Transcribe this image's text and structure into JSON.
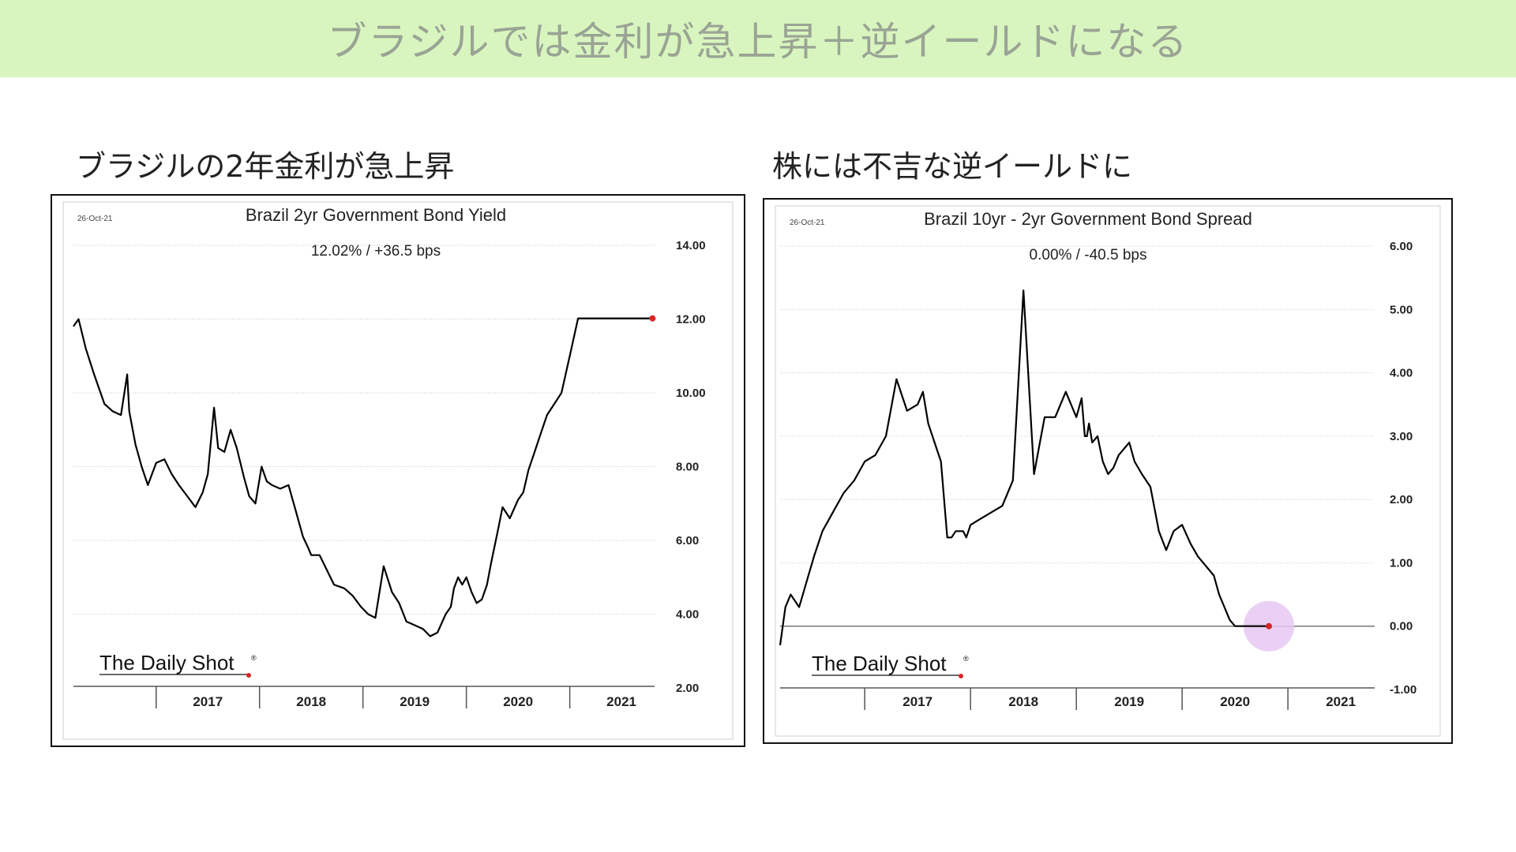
{
  "page": {
    "banner_title": "ブラジルでは金利が急上昇＋逆イールドになる",
    "left_subtitle": "ブラジルの2年金利が急上昇",
    "right_subtitle": "株には不吉な逆イールドに",
    "banner_color": "#d9f5bf"
  },
  "chart_data": [
    {
      "type": "line",
      "date": "26-Oct-21",
      "title": "Brazil 2yr Government Bond Yield",
      "subtitle": "12.02%  /  +36.5 bps",
      "logo": "The Daily Shot",
      "logo_mark": "®",
      "xlabel": "",
      "ylabel": "",
      "x_ticks": [
        "2017",
        "2018",
        "2019",
        "2020",
        "2021"
      ],
      "y_ticks": [
        "14.00",
        "12.00",
        "10.00",
        "8.00",
        "6.00",
        "4.00",
        "2.00"
      ],
      "ylim": [
        2,
        14
      ],
      "xlim": [
        2016.2,
        2021.82
      ],
      "grid": true,
      "line_color": "#000000",
      "marker_color": "#d62728",
      "series": [
        {
          "x": [
            2016.2,
            2016.25,
            2016.32,
            2016.4,
            2016.5,
            2016.58,
            2016.66,
            2016.72,
            2016.74,
            2016.8,
            2016.86,
            2016.92,
            2017.0,
            2017.08,
            2017.15,
            2017.22,
            2017.3,
            2017.38,
            2017.45,
            2017.5,
            2017.56,
            2017.6,
            2017.66,
            2017.72,
            2017.78,
            2017.85,
            2017.9,
            2017.96,
            2018.02,
            2018.07,
            2018.12,
            2018.2,
            2018.28,
            2018.35,
            2018.42,
            2018.47,
            2018.5,
            2018.58,
            2018.65,
            2018.72,
            2018.82,
            2018.9,
            2018.98,
            2019.05,
            2019.12,
            2019.2,
            2019.28,
            2019.35,
            2019.42,
            2019.5,
            2019.58,
            2019.65,
            2019.72,
            2019.8,
            2019.85,
            2019.88,
            2019.92,
            2019.96,
            2020.0,
            2020.05,
            2020.1,
            2020.15,
            2020.2,
            2020.24,
            2020.3,
            2020.35,
            2020.42,
            2020.5,
            2020.55,
            2020.6,
            2020.66,
            2020.72,
            2020.78,
            2020.85,
            2020.92,
            2021.0,
            2021.08,
            2021.15,
            2021.22,
            2021.28,
            2021.34,
            2021.4,
            2021.45,
            2021.5,
            2021.55,
            2021.6,
            2021.65,
            2021.7,
            2021.74,
            2021.77,
            2021.79,
            2021.8
          ],
          "y": [
            11.8,
            12.0,
            11.2,
            10.5,
            9.7,
            9.5,
            9.4,
            10.5,
            9.5,
            8.6,
            8.0,
            7.5,
            8.1,
            8.2,
            7.8,
            7.5,
            7.2,
            6.9,
            7.3,
            7.8,
            9.6,
            8.5,
            8.4,
            9.0,
            8.5,
            7.7,
            7.2,
            7.0,
            8.0,
            7.6,
            7.5,
            7.4,
            7.5,
            6.8,
            6.1,
            5.8,
            5.6,
            5.6,
            5.2,
            4.8,
            4.7,
            4.5,
            4.2,
            4.0,
            3.9,
            5.3,
            4.6,
            4.3,
            3.8,
            3.7,
            3.6,
            3.4,
            3.5,
            4.0,
            4.2,
            4.7,
            5.0,
            4.8,
            5.0,
            4.6,
            4.3,
            4.4,
            4.8,
            5.4,
            6.2,
            6.9,
            6.6,
            7.1,
            7.3,
            7.9,
            8.4,
            8.9,
            9.4,
            9.7,
            10.0,
            11.0,
            12.02,
            12.02,
            12.02,
            12.02,
            12.02,
            12.02,
            12.02,
            12.02,
            12.02,
            12.02,
            12.02,
            12.02,
            12.02,
            12.02,
            12.02,
            12.02
          ]
        }
      ]
    },
    {
      "type": "line",
      "date": "26-Oct-21",
      "title": "Brazil 10yr - 2yr Government Bond Spread",
      "subtitle": "0.00%  /  -40.5 bps",
      "logo": "The Daily Shot",
      "logo_mark": "®",
      "xlabel": "",
      "ylabel": "",
      "x_ticks": [
        "2017",
        "2018",
        "2019",
        "2020",
        "2021"
      ],
      "y_ticks": [
        "6.00",
        "5.00",
        "4.00",
        "3.00",
        "2.00",
        "1.00",
        "0.00",
        "-1.00"
      ],
      "ylim": [
        -1,
        6
      ],
      "xlim": [
        2016.2,
        2021.82
      ],
      "grid": true,
      "zero_line": true,
      "line_color": "#000000",
      "marker_color": "#d62728",
      "highlight_color": "#e6c8f2",
      "series": [
        {
          "x": [
            2016.2,
            2016.25,
            2016.3,
            2016.38,
            2016.45,
            2016.52,
            2016.6,
            2016.7,
            2016.8,
            2016.9,
            2017.0,
            2017.1,
            2017.2,
            2017.3,
            2017.4,
            2017.5,
            2017.55,
            2017.6,
            2017.66,
            2017.72,
            2017.78,
            2017.82,
            2017.86,
            2017.9,
            2017.93,
            2017.96,
            2018.0,
            2018.1,
            2018.2,
            2018.3,
            2018.4,
            2018.5,
            2018.6,
            2018.7,
            2018.8,
            2018.9,
            2019.0,
            2019.05,
            2019.08,
            2019.1,
            2019.12,
            2019.15,
            2019.2,
            2019.25,
            2019.3,
            2019.35,
            2019.4,
            2019.45,
            2019.5,
            2019.55,
            2019.62,
            2019.7,
            2019.78,
            2019.85,
            2019.92,
            2020.0,
            2020.08,
            2020.15,
            2020.2,
            2020.25,
            2020.3,
            2020.35,
            2020.4,
            2020.45,
            2020.5,
            2020.55,
            2020.6,
            2020.65,
            2020.7,
            2020.74,
            2020.78,
            2020.8,
            2020.82
          ],
          "y": [
            -0.3,
            0.3,
            0.5,
            0.3,
            0.7,
            1.1,
            1.5,
            1.8,
            2.1,
            2.3,
            2.6,
            2.7,
            3.0,
            3.9,
            3.4,
            3.5,
            3.7,
            3.2,
            2.9,
            2.6,
            1.4,
            1.4,
            1.5,
            1.5,
            1.5,
            1.4,
            1.6,
            1.7,
            1.8,
            1.9,
            2.3,
            5.3,
            2.4,
            3.3,
            3.3,
            3.7,
            3.3,
            3.6,
            3.0,
            3.0,
            3.2,
            2.9,
            3.0,
            2.6,
            2.4,
            2.5,
            2.7,
            2.8,
            2.9,
            2.6,
            2.4,
            2.2,
            1.5,
            1.2,
            1.5,
            1.6,
            1.3,
            1.1,
            1.0,
            0.9,
            0.8,
            0.5,
            0.3,
            0.1,
            0.0,
            0.0,
            0.0,
            0.0,
            0.0,
            0.0,
            0.0,
            0.0,
            0.0
          ]
        }
      ]
    }
  ]
}
